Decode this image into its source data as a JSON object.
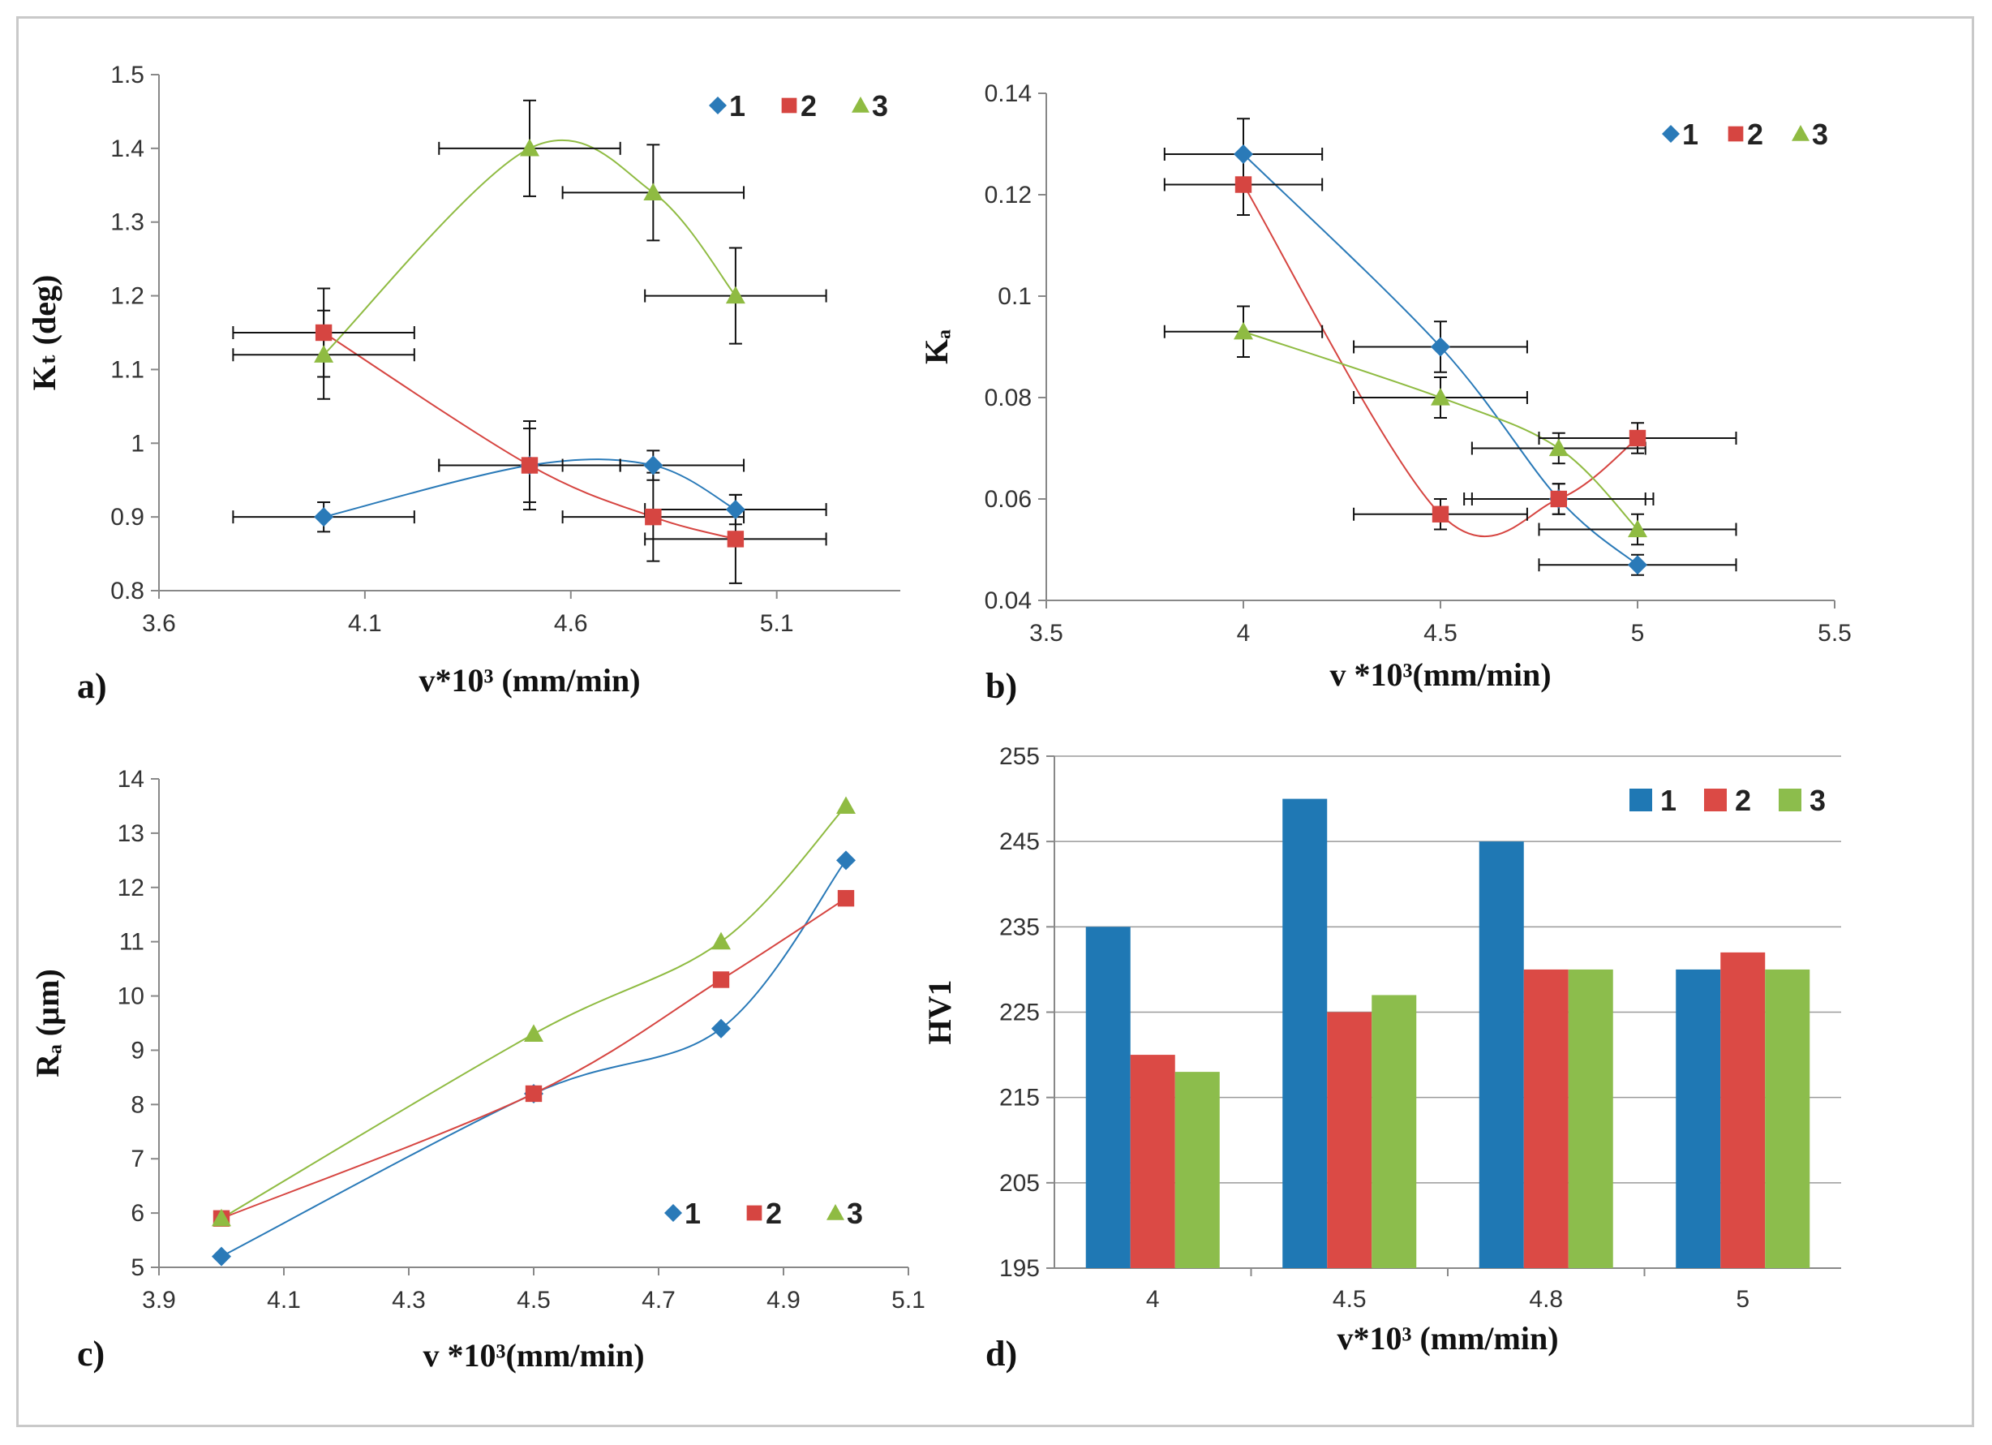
{
  "figure": {
    "colors": {
      "s1": "#2a7ab8",
      "s2": "#d64541",
      "s3": "#8fbb42",
      "bar1": "#1f78b4",
      "bar2": "#db4a45",
      "bar3": "#8cbd4c"
    }
  },
  "chart_data": [
    {
      "id": "a",
      "panel_label": "a)",
      "type": "scatter",
      "title": "",
      "xlabel": "v*10³ (mm/min)",
      "ylabel": "Kₜ (deg)",
      "xlim": [
        3.6,
        5.4
      ],
      "ylim": [
        0.8,
        1.5
      ],
      "xticks": [
        "3.6",
        "4.1",
        "4.6",
        "5.1"
      ],
      "yticks": [
        "0.8",
        "0.9",
        "1",
        "1.1",
        "1.2",
        "1.3",
        "1.4",
        "1.5"
      ],
      "legend_position": "top-right",
      "series": [
        {
          "name": "1",
          "marker": "diamond",
          "x": [
            4.0,
            4.5,
            4.8,
            5.0
          ],
          "y": [
            0.9,
            0.97,
            0.97,
            0.91
          ],
          "yerr": [
            0.02,
            0.05,
            0.02,
            0.02
          ],
          "xerr": [
            0.22,
            0.22,
            0.22,
            0.22
          ]
        },
        {
          "name": "2",
          "marker": "square",
          "x": [
            4.0,
            4.5,
            4.8,
            5.0
          ],
          "y": [
            1.15,
            0.97,
            0.9,
            0.87
          ],
          "yerr": [
            0.06,
            0.06,
            0.06,
            0.06
          ],
          "xerr": [
            0.22,
            0.22,
            0.22,
            0.22
          ]
        },
        {
          "name": "3",
          "marker": "triangle",
          "x": [
            4.0,
            4.5,
            4.8,
            5.0
          ],
          "y": [
            1.12,
            1.4,
            1.34,
            1.2
          ],
          "yerr": [
            0.06,
            0.065,
            0.065,
            0.065
          ],
          "xerr": [
            0.22,
            0.22,
            0.22,
            0.22
          ]
        }
      ]
    },
    {
      "id": "b",
      "panel_label": "b)",
      "type": "scatter",
      "title": "",
      "xlabel": "v *10³(mm/min)",
      "ylabel": "Kₐ",
      "xlim": [
        3.5,
        5.5
      ],
      "ylim": [
        0.04,
        0.14
      ],
      "xticks": [
        "3.5",
        "4",
        "4.5",
        "5",
        "5.5"
      ],
      "yticks": [
        "0.04",
        "0.06",
        "0.08",
        "0.1",
        "0.12",
        "0.14"
      ],
      "legend_position": "top-right",
      "series": [
        {
          "name": "1",
          "marker": "diamond",
          "x": [
            4.0,
            4.5,
            4.8,
            5.0
          ],
          "y": [
            0.128,
            0.09,
            0.06,
            0.047
          ],
          "yerr": [
            0.007,
            0.005,
            0.003,
            0.002
          ],
          "xerr": [
            0.2,
            0.22,
            0.22,
            0.25
          ]
        },
        {
          "name": "2",
          "marker": "square",
          "x": [
            4.0,
            4.5,
            4.8,
            5.0
          ],
          "y": [
            0.122,
            0.057,
            0.06,
            0.072
          ],
          "yerr": [
            0.006,
            0.003,
            0.003,
            0.003
          ],
          "xerr": [
            0.2,
            0.22,
            0.24,
            0.25
          ]
        },
        {
          "name": "3",
          "marker": "triangle",
          "x": [
            4.0,
            4.5,
            4.8,
            5.0
          ],
          "y": [
            0.093,
            0.08,
            0.07,
            0.054
          ],
          "yerr": [
            0.005,
            0.004,
            0.003,
            0.003
          ],
          "xerr": [
            0.2,
            0.22,
            0.22,
            0.25
          ]
        }
      ]
    },
    {
      "id": "c",
      "panel_label": "c)",
      "type": "scatter",
      "title": "",
      "xlabel": "v *10³(mm/min)",
      "ylabel": "Rₐ (µm)",
      "xlim": [
        3.9,
        5.1
      ],
      "ylim": [
        5,
        14
      ],
      "xticks": [
        "3.9",
        "4.1",
        "4.3",
        "4.5",
        "4.7",
        "4.9",
        "5.1"
      ],
      "yticks": [
        "5",
        "6",
        "7",
        "8",
        "9",
        "10",
        "11",
        "12",
        "13",
        "14"
      ],
      "legend_position": "bottom-right",
      "series": [
        {
          "name": "1",
          "marker": "diamond",
          "x": [
            4.0,
            4.5,
            4.8,
            5.0
          ],
          "y": [
            5.2,
            8.2,
            9.4,
            12.5
          ]
        },
        {
          "name": "2",
          "marker": "square",
          "x": [
            4.0,
            4.5,
            4.8,
            5.0
          ],
          "y": [
            5.9,
            8.2,
            10.3,
            11.8
          ]
        },
        {
          "name": "3",
          "marker": "triangle",
          "x": [
            4.0,
            4.5,
            4.8,
            5.0
          ],
          "y": [
            5.9,
            9.3,
            11.0,
            13.5
          ]
        }
      ]
    },
    {
      "id": "d",
      "panel_label": "d)",
      "type": "bar",
      "title": "",
      "xlabel": "v*10³ (mm/min)",
      "ylabel": "HV1",
      "ylim": [
        195,
        255
      ],
      "categories": [
        "4",
        "4.5",
        "4.8",
        "5"
      ],
      "yticks": [
        "195",
        "205",
        "215",
        "225",
        "235",
        "245",
        "255"
      ],
      "legend_position": "top-right",
      "series": [
        {
          "name": "1",
          "values": [
            235,
            250,
            245,
            230
          ]
        },
        {
          "name": "2",
          "values": [
            220,
            225,
            230,
            232
          ]
        },
        {
          "name": "3",
          "values": [
            218,
            227,
            230,
            230
          ]
        }
      ]
    }
  ]
}
